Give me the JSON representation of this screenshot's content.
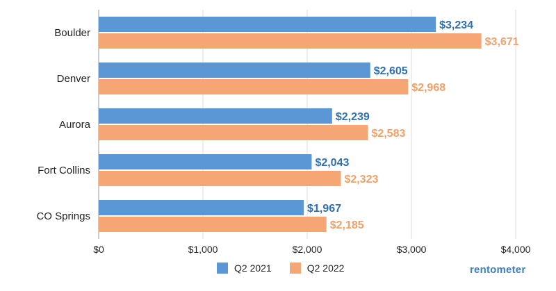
{
  "chart_data": {
    "type": "bar",
    "orientation": "horizontal",
    "categories": [
      "Boulder",
      "Denver",
      "Aurora",
      "Fort Collins",
      "CO Springs"
    ],
    "series": [
      {
        "name": "Q2 2021",
        "color": "#5b97d5",
        "label_color": "#2f6fb3",
        "values": [
          3234,
          2605,
          2239,
          2043,
          1967
        ],
        "labels": [
          "$3,234",
          "$2,605",
          "$2,239",
          "$2,043",
          "$1,967"
        ]
      },
      {
        "name": "Q2 2022",
        "color": "#f5a674",
        "label_color": "#f0a068",
        "values": [
          3671,
          2968,
          2583,
          2323,
          2185
        ],
        "labels": [
          "$3,671",
          "$2,968",
          "$2,583",
          "$2,323",
          "$2,185"
        ]
      }
    ],
    "xlim": [
      0,
      4000
    ],
    "xticks": [
      0,
      1000,
      2000,
      3000,
      4000
    ],
    "xtick_labels": [
      "$0",
      "$1,000",
      "$2,000",
      "$3,000",
      "$4,000"
    ],
    "grid": true,
    "legend_position": "bottom"
  },
  "brand": {
    "text": "rentometer"
  }
}
